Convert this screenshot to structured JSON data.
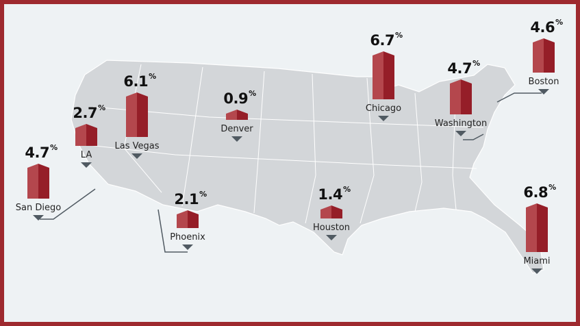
{
  "colors": {
    "frame": "#9e2a2f",
    "background": "#eef2f4",
    "map": "#d3d6d9",
    "bar_light": "#b4474d",
    "bar_dark": "#951e28",
    "pointer": "#505a62"
  },
  "unit": "%",
  "cities": [
    {
      "name": "San Diego",
      "value": "4.7"
    },
    {
      "name": "LA",
      "value": "2.7"
    },
    {
      "name": "Las Vegas",
      "value": "6.1"
    },
    {
      "name": "Denver",
      "value": "0.9"
    },
    {
      "name": "Phoenix",
      "value": "2.1"
    },
    {
      "name": "Houston",
      "value": "1.4"
    },
    {
      "name": "Chicago",
      "value": "6.7"
    },
    {
      "name": "Washington",
      "value": "4.7"
    },
    {
      "name": "Boston",
      "value": "4.6"
    },
    {
      "name": "Miami",
      "value": "6.8"
    }
  ]
}
